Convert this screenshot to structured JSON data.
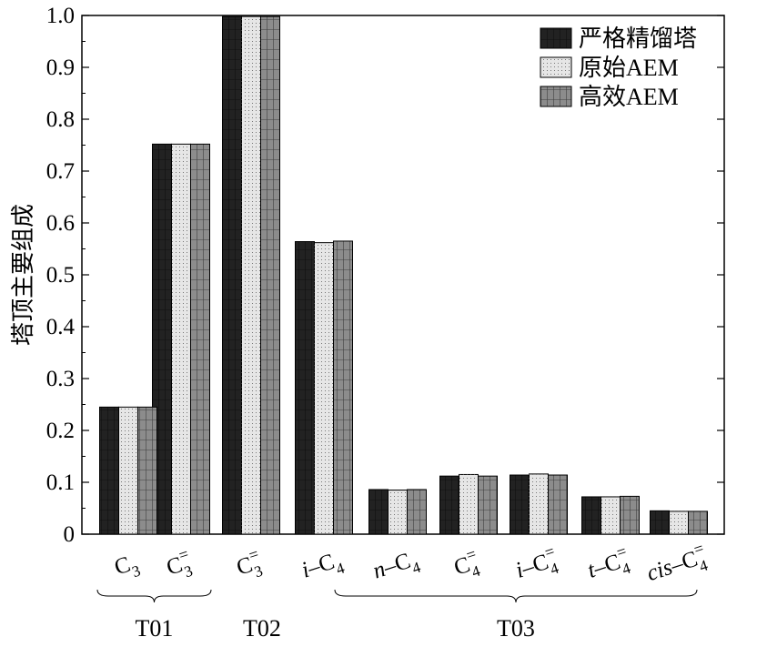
{
  "chart_data": {
    "type": "bar",
    "ylabel": "塔顶主要组成",
    "ylim": [
      0,
      1.0
    ],
    "yticks": [
      "0",
      "0.1",
      "0.2",
      "0.3",
      "0.4",
      "0.5",
      "0.6",
      "0.7",
      "0.8",
      "0.9",
      "1.0"
    ],
    "grid": false,
    "legend_position": "top-right",
    "categories": [
      {
        "pre": "",
        "base": "C",
        "sub": "3",
        "sup": ""
      },
      {
        "pre": "",
        "base": "C",
        "sub": "3",
        "sup": "="
      },
      {
        "pre": "",
        "base": "C",
        "sub": "3",
        "sup": "="
      },
      {
        "pre": "i–",
        "base": "C",
        "sub": "4",
        "sup": ""
      },
      {
        "pre": "n–",
        "base": "C",
        "sub": "4",
        "sup": ""
      },
      {
        "pre": "",
        "base": "C",
        "sub": "4",
        "sup": "="
      },
      {
        "pre": "i–",
        "base": "C",
        "sub": "4",
        "sup": "="
      },
      {
        "pre": "t–",
        "base": "C",
        "sub": "4",
        "sup": "="
      },
      {
        "pre": "cis–",
        "base": "C",
        "sub": "4",
        "sup": "="
      }
    ],
    "series": [
      {
        "name": "严格精馏塔",
        "color": "#222222",
        "values": [
          0.245,
          0.752,
          0.998,
          0.564,
          0.086,
          0.112,
          0.114,
          0.072,
          0.045
        ]
      },
      {
        "name": "原始AEM",
        "color": "#e6e6e6",
        "values": [
          0.245,
          0.752,
          0.998,
          0.562,
          0.085,
          0.115,
          0.116,
          0.072,
          0.044
        ]
      },
      {
        "name": "高效AEM",
        "color": "#8c8c8c",
        "values": [
          0.245,
          0.752,
          0.998,
          0.565,
          0.086,
          0.112,
          0.114,
          0.073,
          0.044
        ]
      }
    ],
    "groups": [
      {
        "label": "T01",
        "from": 0,
        "to": 1,
        "bracket": true
      },
      {
        "label": "T02",
        "from": 2,
        "to": 2,
        "bracket": false
      },
      {
        "label": "T03",
        "from": 3,
        "to": 8,
        "bracket": true
      }
    ]
  }
}
